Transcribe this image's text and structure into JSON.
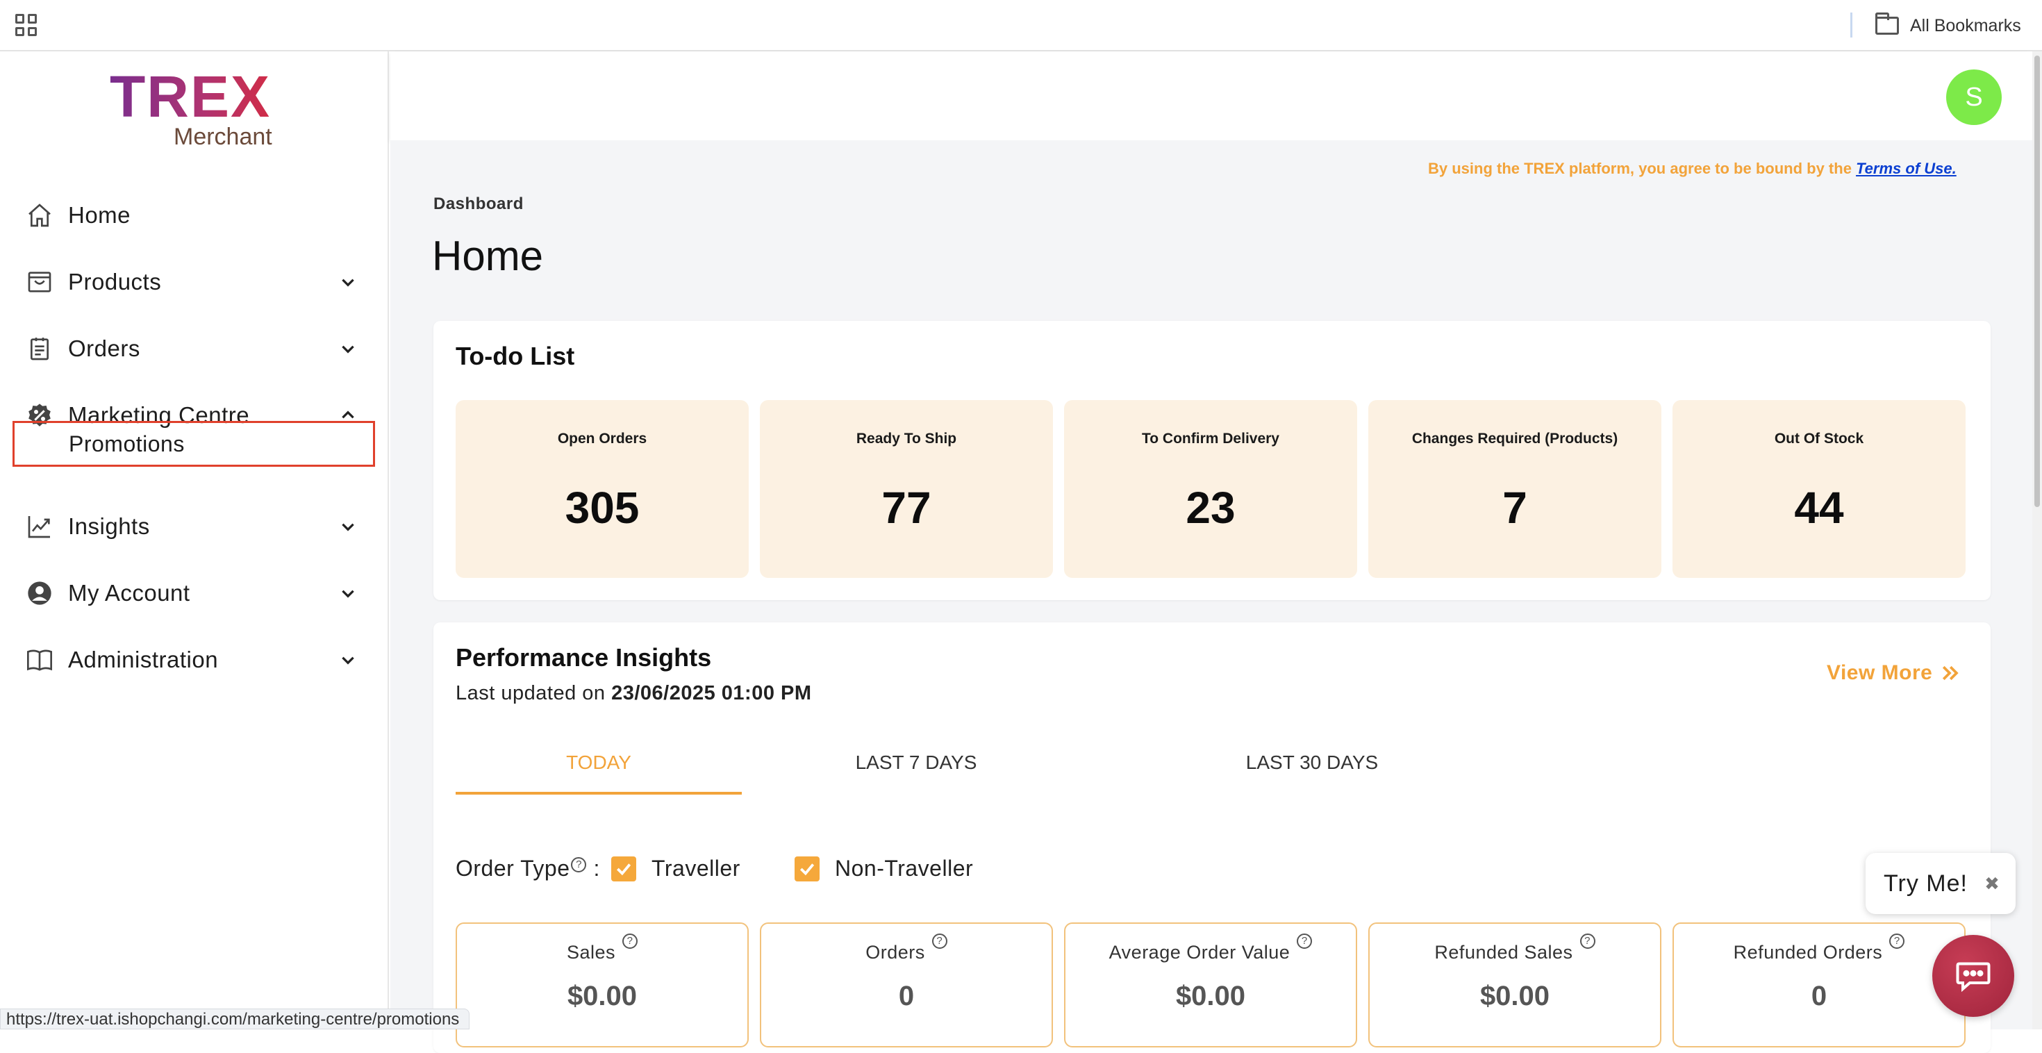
{
  "bookmarks_bar": {
    "all_bookmarks_label": "All Bookmarks"
  },
  "logo": {
    "brand": "TREX",
    "subtitle": "Merchant"
  },
  "sidebar": {
    "items": [
      {
        "label": "Home",
        "icon": "home-icon",
        "expandable": false
      },
      {
        "label": "Products",
        "icon": "bag-icon",
        "expandable": true
      },
      {
        "label": "Orders",
        "icon": "clipboard-icon",
        "expandable": true
      },
      {
        "label": "Marketing Centre",
        "icon": "percent-badge-icon",
        "expandable": true,
        "expanded": true
      },
      {
        "label": "Insights",
        "icon": "trend-chart-icon",
        "expandable": true
      },
      {
        "label": "My Account",
        "icon": "user-circle-icon",
        "expandable": true
      },
      {
        "label": "Administration",
        "icon": "book-icon",
        "expandable": true
      }
    ],
    "sub_items": {
      "marketing_centre": [
        "Promotions"
      ]
    }
  },
  "header": {
    "avatar_initial": "S",
    "avatar_color": "#7dea49"
  },
  "terms": {
    "text": "By using the TREX platform, you agree to be bound by the",
    "link": "Terms of Use."
  },
  "breadcrumb": "Dashboard",
  "page_title": "Home",
  "todo": {
    "title": "To-do List",
    "tiles": [
      {
        "label": "Open Orders",
        "value": "305"
      },
      {
        "label": "Ready To Ship",
        "value": "77"
      },
      {
        "label": "To Confirm Delivery",
        "value": "23"
      },
      {
        "label": "Changes Required (Products)",
        "value": "7"
      },
      {
        "label": "Out Of Stock",
        "value": "44"
      }
    ]
  },
  "performance": {
    "title": "Performance Insights",
    "updated_prefix": "Last updated on",
    "updated_value": "23/06/2025 01:00 PM",
    "view_more": "View More",
    "tabs": [
      "TODAY",
      "LAST 7 DAYS",
      "LAST 30 DAYS"
    ],
    "active_tab": "TODAY",
    "order_type_label": "Order Type",
    "order_type_colon": ":",
    "checkboxes": [
      {
        "label": "Traveller",
        "checked": true
      },
      {
        "label": "Non-Traveller",
        "checked": true
      }
    ],
    "metrics": [
      {
        "label": "Sales",
        "value": "$0.00"
      },
      {
        "label": "Orders",
        "value": "0"
      },
      {
        "label": "Average Order Value",
        "value": "$0.00"
      },
      {
        "label": "Refunded Sales",
        "value": "$0.00"
      },
      {
        "label": "Refunded Orders",
        "value": "0"
      }
    ]
  },
  "try_me": {
    "label": "Try Me!",
    "close_glyph": "✖"
  },
  "status_url": "https://trex-uat.ishopchangi.com/marketing-centre/promotions",
  "colors": {
    "accent": "#f2a33a",
    "tile_bg": "#fcf1e2",
    "highlight_border": "#e0412c",
    "chat": "#b32d47"
  }
}
